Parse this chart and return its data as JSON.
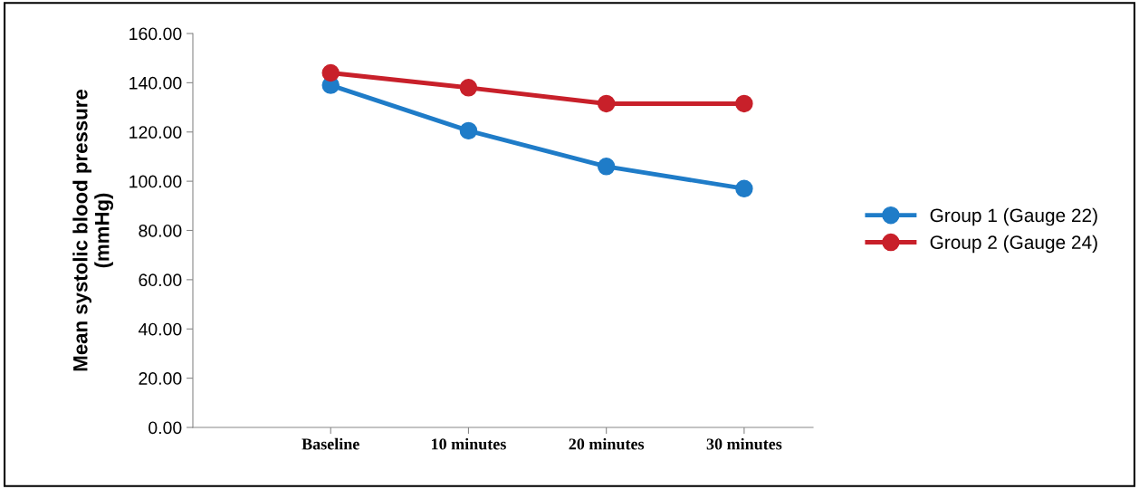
{
  "chart_data": {
    "type": "line",
    "ylabel": "Mean systolic blood pressure\n(mmHg)",
    "categories": [
      "Baseline",
      "10 minutes",
      "20 minutes",
      "30 minutes"
    ],
    "series": [
      {
        "name": "Group 1 (Gauge 22)",
        "color": "#1f7cc8",
        "values": [
          139,
          120.5,
          106,
          97
        ]
      },
      {
        "name": "Group 2 (Gauge 24)",
        "color": "#c8202a",
        "values": [
          144,
          138,
          131.5,
          131.5
        ]
      }
    ],
    "ylim": [
      0,
      160
    ],
    "yticks": [
      {
        "value": 0,
        "label": "0.00"
      },
      {
        "value": 20,
        "label": "20.00"
      },
      {
        "value": 40,
        "label": "40.00"
      },
      {
        "value": 60,
        "label": "60.00"
      },
      {
        "value": 80,
        "label": "80.00"
      },
      {
        "value": 100,
        "label": "100.00"
      },
      {
        "value": 120,
        "label": "120.00"
      },
      {
        "value": 140,
        "label": "140.00"
      },
      {
        "value": 160,
        "label": "160.00"
      }
    ],
    "grid": false,
    "legend": "right",
    "marker": "circle",
    "line_style": "solid"
  }
}
